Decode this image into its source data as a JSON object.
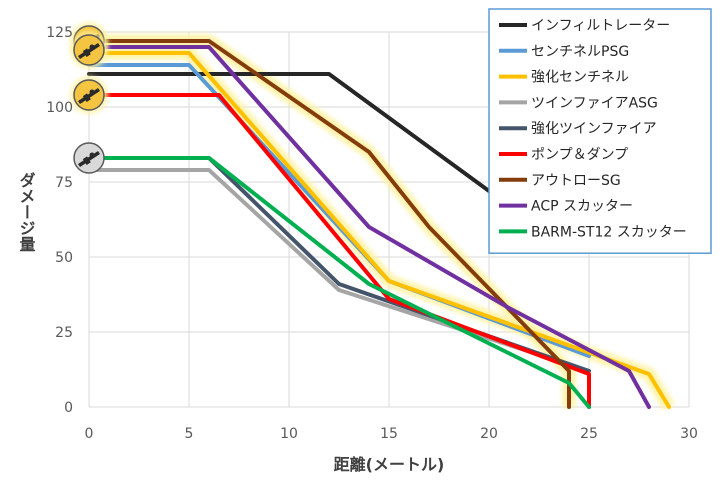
{
  "chart_data": {
    "type": "line",
    "title": "",
    "xlabel": "距離(メートル)",
    "ylabel": "ダメージ量",
    "xlim": [
      0,
      30
    ],
    "ylim": [
      0,
      125
    ],
    "xticks": [
      0,
      5,
      10,
      15,
      20,
      25,
      30
    ],
    "yticks": [
      0,
      25,
      50,
      75,
      100,
      125
    ],
    "grid": true,
    "legend": "top-right",
    "series": [
      {
        "name": "インフィルトレーター",
        "color": "#262626",
        "glow": false,
        "points": [
          [
            0,
            111
          ],
          [
            12,
            111
          ],
          [
            20,
            72
          ],
          [
            24,
            72
          ]
        ]
      },
      {
        "name": "センチネルPSG",
        "color": "#5b9bd5",
        "glow": false,
        "points": [
          [
            0,
            114
          ],
          [
            5,
            114
          ],
          [
            15,
            42
          ],
          [
            25,
            17
          ]
        ]
      },
      {
        "name": "強化センチネル",
        "color": "#ffc000",
        "glow": true,
        "points": [
          [
            0,
            118
          ],
          [
            5,
            118
          ],
          [
            15,
            42
          ],
          [
            28,
            11
          ],
          [
            29,
            0
          ]
        ]
      },
      {
        "name": "ツインファイアASG",
        "color": "#a5a5a5",
        "glow": false,
        "points": [
          [
            0,
            79
          ],
          [
            6,
            79
          ],
          [
            12.5,
            39
          ],
          [
            25,
            12
          ]
        ]
      },
      {
        "name": "強化ツインファイア",
        "color": "#44546a",
        "glow": false,
        "points": [
          [
            0,
            83
          ],
          [
            6,
            83
          ],
          [
            12.5,
            41
          ],
          [
            25,
            12
          ]
        ]
      },
      {
        "name": "ポンプ＆ダンプ",
        "color": "#ff0000",
        "glow": false,
        "points": [
          [
            0,
            104
          ],
          [
            6.5,
            104
          ],
          [
            15,
            36
          ],
          [
            25,
            11
          ],
          [
            25,
            0
          ]
        ]
      },
      {
        "name": "アウトローSG",
        "color": "#843c0c",
        "glow": true,
        "points": [
          [
            0,
            122
          ],
          [
            6,
            122
          ],
          [
            14,
            85
          ],
          [
            17,
            60
          ],
          [
            24,
            12
          ],
          [
            24,
            0
          ]
        ]
      },
      {
        "name": "ACP スカッター",
        "color": "#7030a0",
        "glow": false,
        "points": [
          [
            0,
            120
          ],
          [
            6,
            120
          ],
          [
            14,
            60
          ],
          [
            21,
            33
          ],
          [
            27,
            12
          ],
          [
            28,
            0
          ]
        ]
      },
      {
        "name": "BARM-ST12 スカッター",
        "color": "#00b050",
        "glow": false,
        "points": [
          [
            0,
            83
          ],
          [
            6,
            83
          ],
          [
            14,
            41
          ],
          [
            24,
            8
          ],
          [
            25,
            0
          ]
        ]
      }
    ],
    "icons": [
      {
        "name": "gun-icon",
        "y": 122,
        "glow": true
      },
      {
        "name": "gun-icon",
        "y": 119,
        "glow": true
      },
      {
        "name": "gun-icon",
        "y": 104,
        "glow": true
      },
      {
        "name": "gun-icon",
        "y": 83,
        "glow": false
      }
    ]
  }
}
